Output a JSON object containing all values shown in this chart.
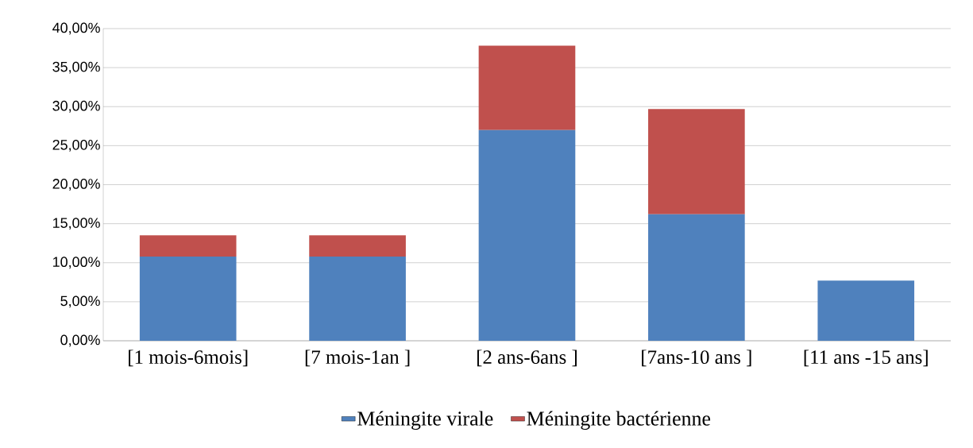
{
  "chart_data": {
    "type": "bar",
    "stacked": true,
    "categories": [
      "[1 mois-6mois]",
      "[7 mois-1an ]",
      "[2 ans-6ans ]",
      "[7ans-10 ans ]",
      "[11 ans -15 ans]"
    ],
    "series": [
      {
        "name": "Méningite virale",
        "color": "#4f81bd",
        "values": [
          10.8,
          10.8,
          27.0,
          16.2,
          7.7
        ]
      },
      {
        "name": "Méningite bactérienne",
        "color": "#c0504d",
        "values": [
          2.7,
          2.7,
          10.8,
          13.5,
          0
        ]
      }
    ],
    "ylim": [
      0,
      40
    ],
    "yticks": [
      {
        "value": 0,
        "label": "0,00%"
      },
      {
        "value": 5,
        "label": "5,00%"
      },
      {
        "value": 10,
        "label": "10,00%"
      },
      {
        "value": 15,
        "label": "15,00%"
      },
      {
        "value": 20,
        "label": "20,00%"
      },
      {
        "value": 25,
        "label": "25,00%"
      },
      {
        "value": 30,
        "label": "30,00%"
      },
      {
        "value": 35,
        "label": "35,00%"
      },
      {
        "value": 40,
        "label": "40,00%"
      }
    ],
    "grid": "y",
    "legend": "bottom"
  }
}
